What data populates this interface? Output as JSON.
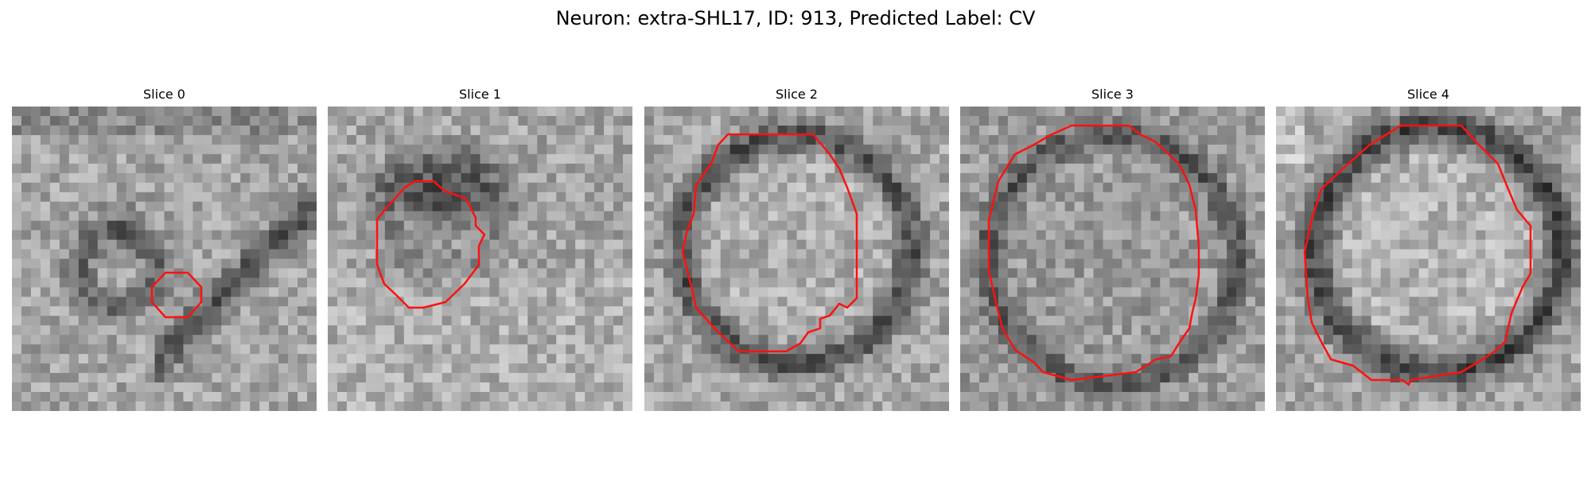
{
  "figure": {
    "title": "Neuron: extra-SHL17, ID: 913, Predicted Label: CV"
  },
  "panels": [
    {
      "title": "Slice 0"
    },
    {
      "title": "Slice 1"
    },
    {
      "title": "Slice 2"
    },
    {
      "title": "Slice 3"
    },
    {
      "title": "Slice 4"
    }
  ],
  "colors": {
    "contour": "#ff1111",
    "background": "#ffffff"
  }
}
